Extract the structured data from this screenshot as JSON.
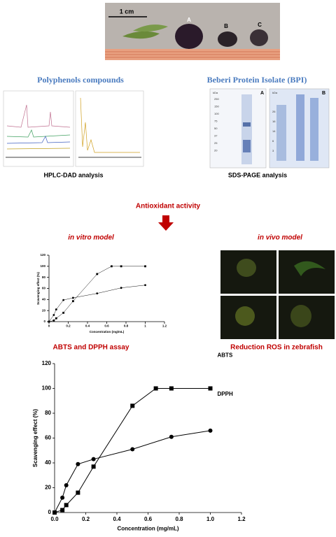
{
  "photo": {
    "scale": "1 cm",
    "labels": [
      "A",
      "B",
      "C"
    ]
  },
  "sections": {
    "polyphenols": "Polyphenols compounds",
    "protein": "Beberi Protein Isolate (BPI)",
    "hplc": "HPLC-DAD analysis",
    "sds": "SDS-PAGE analysis",
    "activity": "Antioxidant activity",
    "in_vitro": "in vitro model",
    "in_vivo": "in vivo model",
    "assay": "ABTS and DPPH assay",
    "ros": "Reduction ROS in zebrafish"
  },
  "gel": {
    "a_label": "A",
    "b_label": "B",
    "unit": "kDa",
    "a_markers": [
      "250",
      "150",
      "100",
      "75",
      "50",
      "37",
      "25",
      "20"
    ],
    "b_markers": [
      "26",
      "16",
      "14",
      "6",
      "3"
    ]
  },
  "chart_data": [
    {
      "type": "line",
      "xlabel": "Concentration (mg/mL)",
      "ylabel": "Scavenging effect (%)",
      "xlim": [
        0,
        1.2
      ],
      "xticks": [
        0,
        0.2,
        0.4,
        0.6,
        0.8,
        1,
        1.2
      ],
      "ylim": [
        0,
        120
      ],
      "yticks": [
        0,
        20,
        40,
        60,
        80,
        100,
        120
      ],
      "series": [
        {
          "name": "ABTS",
          "color": "#000000",
          "marker": "square",
          "x": [
            0,
            0.05,
            0.075,
            0.15,
            0.25,
            0.5,
            0.65,
            0.75,
            1.0
          ],
          "values": [
            0,
            2,
            6,
            16,
            37,
            86,
            100,
            100,
            100
          ]
        },
        {
          "name": "DPPH",
          "color": "#000000",
          "marker": "circle",
          "x": [
            0,
            0.05,
            0.075,
            0.15,
            0.25,
            0.5,
            0.75,
            1.0
          ],
          "values": [
            0,
            12,
            22,
            39,
            43,
            51,
            61,
            66
          ]
        }
      ]
    },
    {
      "type": "line",
      "xlabel": "Concentration (mg/mL)",
      "ylabel": "Scavenging  effect (%)",
      "xlim": [
        0,
        1.2
      ],
      "xticks": [
        {
          "value": 0,
          "label": "0.0"
        },
        0.2,
        0.4,
        0.6,
        0.8,
        {
          "value": 1,
          "label": "1.0"
        },
        1.2
      ],
      "ylim": [
        0,
        120
      ],
      "yticks": [
        0,
        20,
        40,
        60,
        80,
        100,
        120
      ],
      "series": [
        {
          "name": "ABTS",
          "color": "#000000",
          "marker": "square",
          "x": [
            0,
            0.05,
            0.075,
            0.15,
            0.25,
            0.5,
            0.65,
            0.75,
            1.0
          ],
          "values": [
            0,
            2,
            6,
            16,
            37,
            86,
            100,
            100,
            100
          ]
        },
        {
          "name": "DPPH",
          "color": "#000000",
          "marker": "circle",
          "x": [
            0,
            0.05,
            0.075,
            0.15,
            0.25,
            0.5,
            0.75,
            1.0
          ],
          "values": [
            0,
            12,
            22,
            39,
            43,
            51,
            61,
            66
          ]
        }
      ]
    }
  ]
}
